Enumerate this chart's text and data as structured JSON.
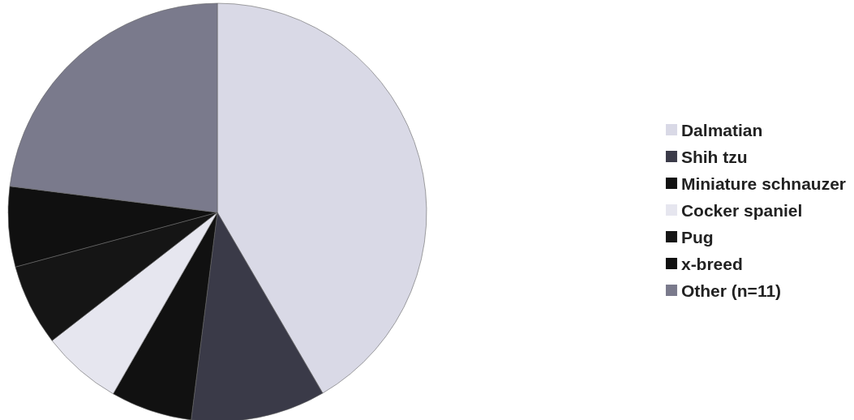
{
  "chart_data": {
    "type": "pie",
    "categories": [
      "Dalmatian",
      "Shih tzu",
      "Miniature schnauzer",
      "Cocker spaniel",
      "Pug",
      "x-breed",
      "Other (n=11)"
    ],
    "values": [
      41.6,
      10.4,
      6.3,
      6.2,
      6.3,
      6.2,
      23.0
    ],
    "colors": [
      "#d9d9e6",
      "#3a3a48",
      "#111111",
      "#e6e6ef",
      "#151515",
      "#101010",
      "#7a7a8c"
    ],
    "legend": "right"
  }
}
